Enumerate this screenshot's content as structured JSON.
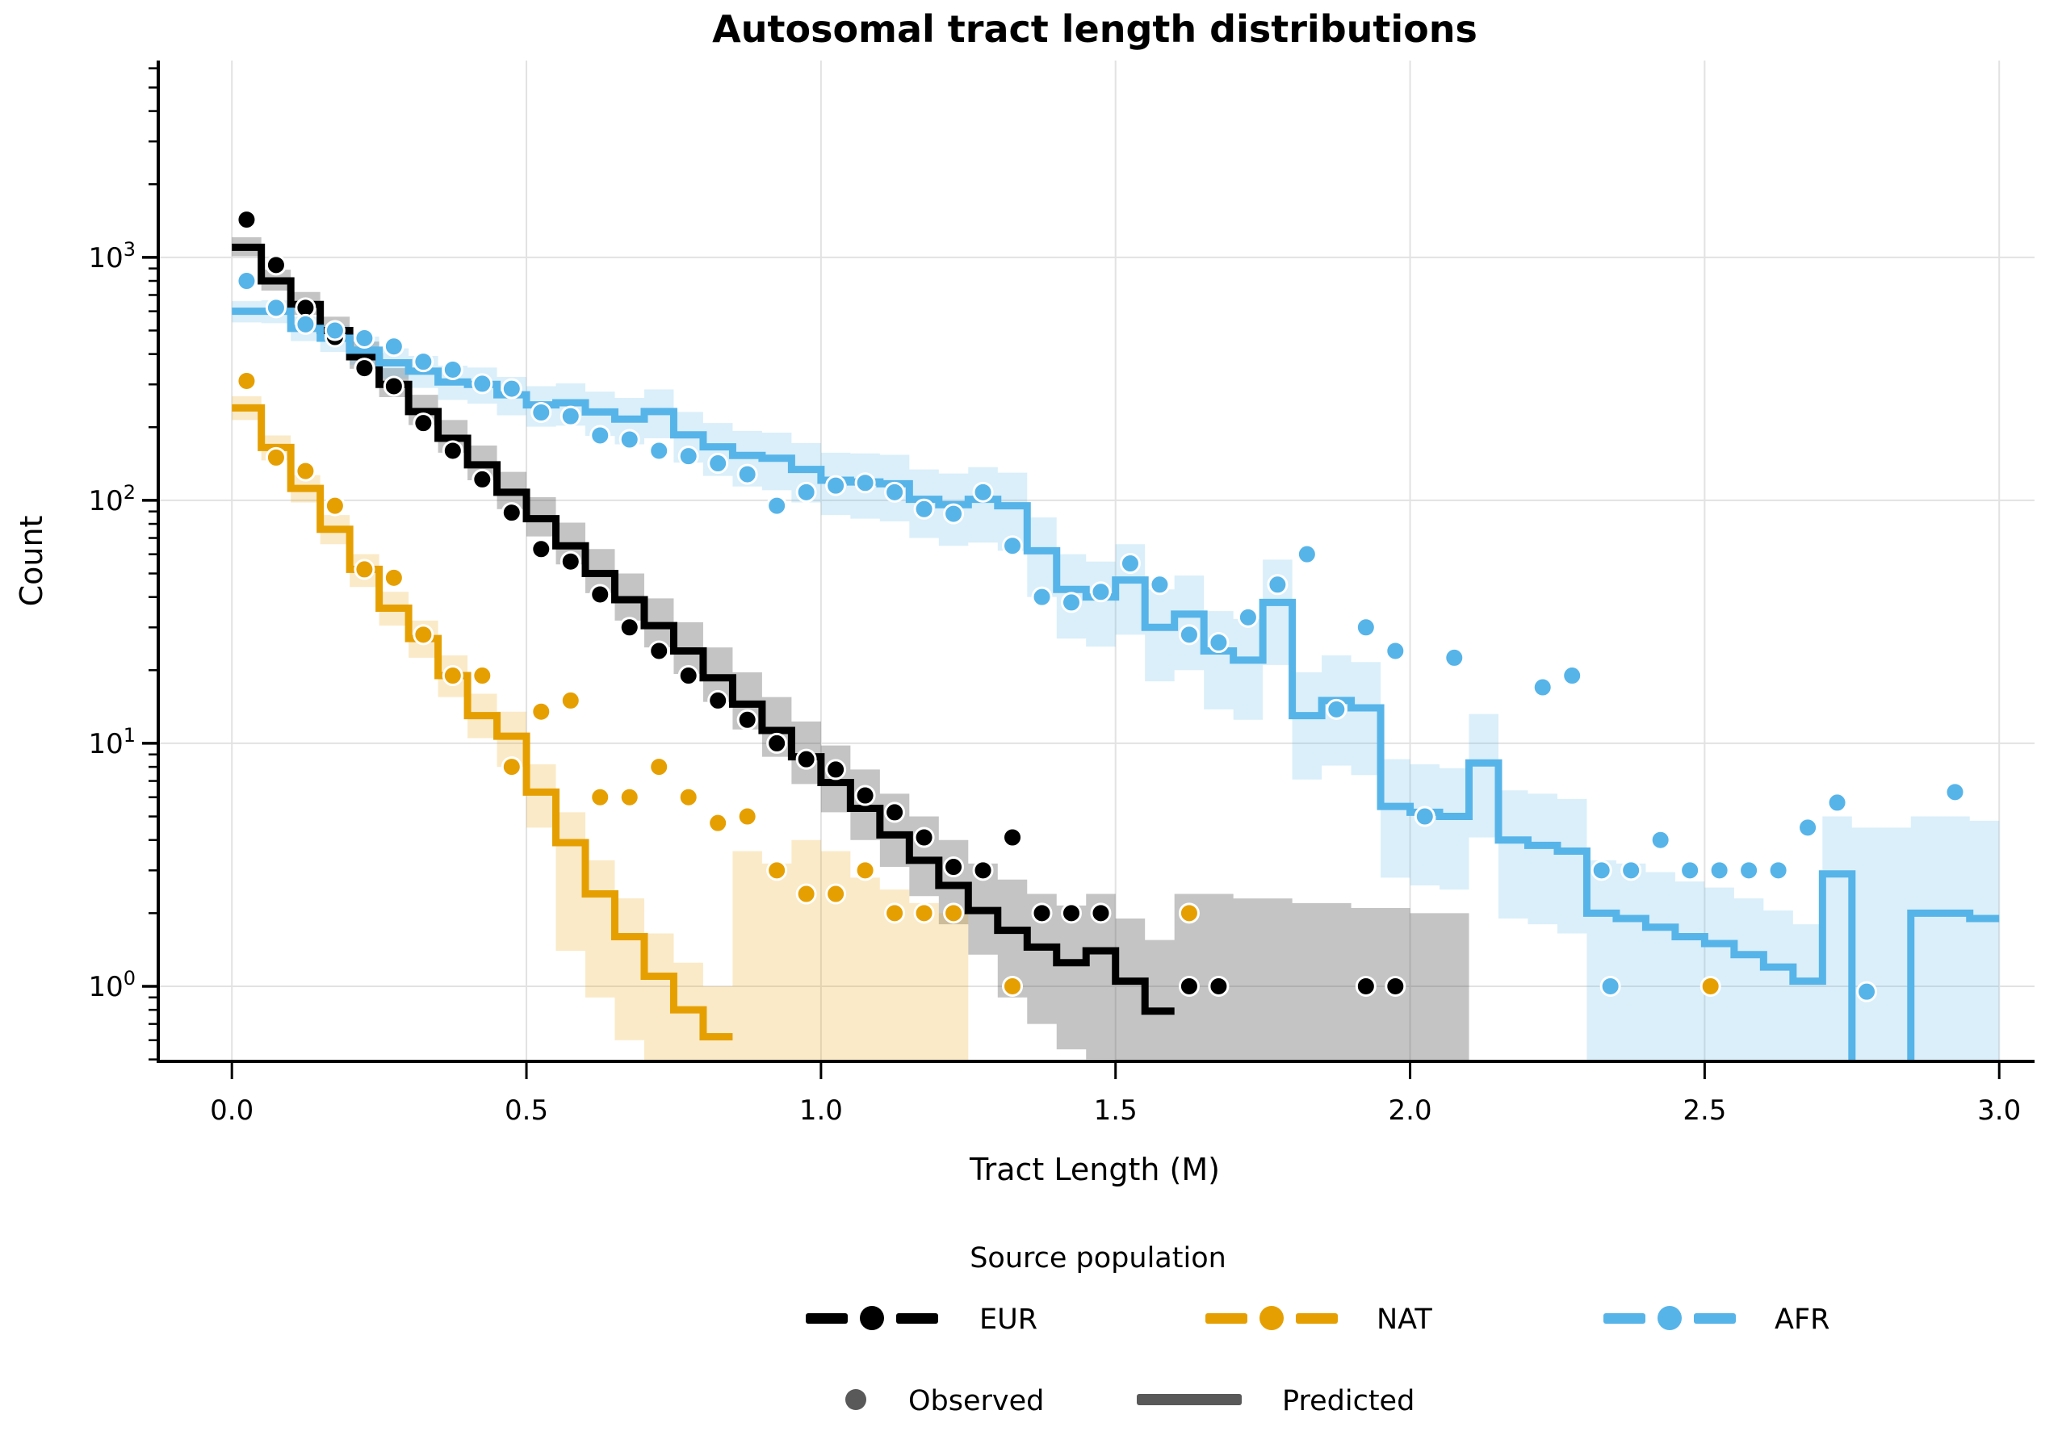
{
  "title": "Autosomal tract length distributions",
  "axes": {
    "x_label": "Tract Length (M)",
    "y_label": "Count",
    "x_tick_values": [
      0.0,
      0.5,
      1.0,
      1.5,
      2.0,
      2.5,
      3.0
    ],
    "x_tick_labels": [
      "0.0",
      "0.5",
      "1.0",
      "1.5",
      "2.0",
      "2.5",
      "3.0"
    ],
    "y_tick_exponents": [
      0,
      1,
      2,
      3
    ],
    "y_tick_base": "10",
    "xlim": [
      -0.125,
      3.06
    ],
    "ylim_log10": [
      -0.309,
      3.81
    ],
    "grid": true,
    "grid_color": "#e2e2e2",
    "spine_color": "#000000"
  },
  "legend": {
    "title": "Source population",
    "populations": [
      {
        "label": "EUR",
        "color": "#000000"
      },
      {
        "label": "NAT",
        "color": "#E69F00"
      },
      {
        "label": "AFR",
        "color": "#56B4E9"
      }
    ],
    "styles": [
      {
        "label": "Observed",
        "kind": "dot"
      },
      {
        "label": "Predicted",
        "kind": "line"
      }
    ],
    "neutral_color": "#595959"
  },
  "chart_data": {
    "type": "step-histogram-with-scatter",
    "title": "Autosomal tract length distributions",
    "xlabel": "Tract Length (M)",
    "ylabel": "Count",
    "y_scale": "log",
    "x_bin_width": 0.05,
    "x_start": 0.0,
    "series": [
      {
        "name": "EUR",
        "color": "#000000",
        "band_color": "rgba(70,70,70,0.32)",
        "predicted": [
          1100,
          800,
          640,
          500,
          390,
          300,
          232,
          180,
          140,
          108,
          84,
          65,
          50,
          39,
          30.5,
          24,
          18.6,
          14.5,
          11.3,
          8.8,
          6.9,
          5.4,
          4.2,
          3.3,
          2.6,
          2.05,
          1.7,
          1.45,
          1.25,
          1.4,
          1.05,
          0.79,
          null,
          null,
          null,
          null,
          null,
          null,
          null,
          null,
          null,
          null
        ],
        "ci_hi": [
          1210,
          890,
          720,
          570,
          450,
          350,
          272,
          214,
          168,
          131,
          103,
          81,
          63,
          50,
          39.5,
          31.5,
          24.8,
          19.6,
          15.5,
          12.3,
          9.8,
          7.8,
          6.2,
          5.0,
          4.0,
          3.2,
          2.75,
          2.4,
          2.15,
          2.4,
          1.9,
          1.55,
          2.4,
          2.4,
          2.3,
          2.3,
          2.2,
          2.2,
          2.1,
          2.1,
          2.0,
          2.0
        ],
        "ci_lo": [
          1010,
          730,
          580,
          450,
          348,
          266,
          204,
          157,
          121,
          92,
          71,
          54.5,
          41.5,
          32,
          24.8,
          19.3,
          14.8,
          11.4,
          8.8,
          6.8,
          5.2,
          4.0,
          3.1,
          2.35,
          1.8,
          1.35,
          0.9,
          0.7,
          0.55,
          0.5,
          0.4,
          0.35,
          0.3,
          0.3,
          0.3,
          0.3,
          0.3,
          0.3,
          0.3,
          0.3,
          0.3,
          0.3
        ],
        "observed": [
          [
            0.025,
            1430
          ],
          [
            0.075,
            930
          ],
          [
            0.125,
            620
          ],
          [
            0.175,
            470
          ],
          [
            0.225,
            350
          ],
          [
            0.275,
            295
          ],
          [
            0.325,
            208
          ],
          [
            0.375,
            160
          ],
          [
            0.425,
            122
          ],
          [
            0.475,
            89
          ],
          [
            0.525,
            63
          ],
          [
            0.575,
            56
          ],
          [
            0.625,
            41
          ],
          [
            0.675,
            30
          ],
          [
            0.725,
            24
          ],
          [
            0.775,
            19
          ],
          [
            0.825,
            15
          ],
          [
            0.875,
            12.5
          ],
          [
            0.925,
            10
          ],
          [
            0.975,
            8.6
          ],
          [
            1.025,
            7.8
          ],
          [
            1.075,
            6.1
          ],
          [
            1.125,
            5.2
          ],
          [
            1.175,
            4.1
          ],
          [
            1.225,
            3.1
          ],
          [
            1.275,
            3.0
          ],
          [
            1.325,
            4.1
          ],
          [
            1.375,
            2
          ],
          [
            1.425,
            2
          ],
          [
            1.475,
            2
          ],
          [
            1.625,
            1
          ],
          [
            1.675,
            1
          ],
          [
            1.925,
            1
          ],
          [
            1.975,
            1
          ]
        ]
      },
      {
        "name": "NAT",
        "color": "#E69F00",
        "band_color": "rgba(230,159,0,0.22)",
        "predicted": [
          240,
          165,
          112,
          76,
          52,
          36,
          27,
          19,
          13,
          10.7,
          6.3,
          3.9,
          2.4,
          1.6,
          1.1,
          0.8,
          0.62,
          null,
          null,
          null,
          null,
          null,
          null,
          null,
          null
        ],
        "ci_hi": [
          268,
          185,
          127,
          87,
          60,
          42,
          32,
          23,
          16,
          13.5,
          8.2,
          5.2,
          3.3,
          2.3,
          1.65,
          1.25,
          1.0,
          3.6,
          3.2,
          4.0,
          3.6,
          2.8,
          2.5,
          2.2,
          2.0
        ],
        "ci_lo": [
          214,
          146,
          98,
          66,
          44,
          30.5,
          22.5,
          15.5,
          10.5,
          8.0,
          4.5,
          1.4,
          0.9,
          0.6,
          0.45,
          0.35,
          0.3,
          0.3,
          0.3,
          0.3,
          0.3,
          0.3,
          0.3,
          0.3,
          0.3
        ],
        "observed": [
          [
            0.025,
            310
          ],
          [
            0.075,
            150
          ],
          [
            0.125,
            132
          ],
          [
            0.175,
            95
          ],
          [
            0.225,
            52
          ],
          [
            0.275,
            48
          ],
          [
            0.325,
            28
          ],
          [
            0.375,
            19
          ],
          [
            0.425,
            19
          ],
          [
            0.475,
            8
          ],
          [
            0.525,
            13.5
          ],
          [
            0.575,
            15
          ],
          [
            0.625,
            6
          ],
          [
            0.675,
            6
          ],
          [
            0.725,
            8
          ],
          [
            0.775,
            6
          ],
          [
            0.825,
            4.7
          ],
          [
            0.875,
            5
          ],
          [
            0.925,
            3
          ],
          [
            0.975,
            2.4
          ],
          [
            1.025,
            2.4
          ],
          [
            1.075,
            3
          ],
          [
            1.125,
            2
          ],
          [
            1.175,
            2
          ],
          [
            1.225,
            2
          ],
          [
            1.325,
            1
          ],
          [
            1.625,
            2
          ],
          [
            2.51,
            1
          ]
        ]
      },
      {
        "name": "AFR",
        "color": "#56B4E9",
        "band_color": "rgba(86,180,233,0.22)",
        "predicted": [
          600,
          600,
          510,
          465,
          415,
          368,
          340,
          307,
          300,
          272,
          247,
          252,
          231,
          216,
          232,
          186,
          166,
          153,
          149,
          134,
          121,
          119,
          117,
          101,
          96,
          101,
          95,
          62,
          43,
          40,
          47,
          30,
          34,
          24,
          22,
          38,
          13,
          15,
          14,
          5.5,
          5.2,
          5.0,
          8.3,
          4.0,
          3.8,
          3.6,
          2.0,
          1.9,
          1.75,
          1.6,
          1.5,
          1.35,
          1.2,
          1.05,
          2.9,
          0.3,
          0.3,
          2.0,
          2.0,
          1.9
        ],
        "ci_hi": [
          660,
          665,
          570,
          525,
          472,
          422,
          393,
          358,
          352,
          322,
          295,
          303,
          280,
          264,
          286,
          231,
          208,
          193,
          190,
          172,
          157,
          156,
          154,
          134,
          129,
          137,
          130,
          85,
          60,
          56,
          66,
          43,
          49,
          35,
          32.5,
          57,
          19.6,
          23,
          21.6,
          8.6,
          8.2,
          7.9,
          13.2,
          6.4,
          6.2,
          5.9,
          3.3,
          3.2,
          2.95,
          2.7,
          2.55,
          2.3,
          2.05,
          1.8,
          5.0,
          4.5,
          4.5,
          5.0,
          5.0,
          4.8
        ],
        "ci_lo": [
          540,
          536,
          452,
          408,
          361,
          317,
          290,
          259,
          250,
          224,
          201,
          203,
          184,
          170,
          180,
          143,
          126,
          114,
          110,
          98,
          87,
          84,
          82,
          70,
          65,
          67,
          62,
          40,
          27,
          25,
          28,
          18,
          20,
          13.8,
          12.5,
          21,
          7.1,
          8.1,
          7.4,
          2.8,
          2.6,
          2.5,
          4.1,
          1.9,
          1.8,
          1.65,
          0.3,
          0.3,
          0.3,
          0.3,
          0.3,
          0.3,
          0.3,
          0.3,
          0.3,
          0.2,
          0.2,
          0.3,
          0.3,
          0.3
        ],
        "observed": [
          [
            0.025,
            800
          ],
          [
            0.075,
            620
          ],
          [
            0.125,
            530
          ],
          [
            0.175,
            500
          ],
          [
            0.225,
            465
          ],
          [
            0.275,
            430
          ],
          [
            0.325,
            372
          ],
          [
            0.375,
            345
          ],
          [
            0.425,
            302
          ],
          [
            0.475,
            288
          ],
          [
            0.525,
            230
          ],
          [
            0.575,
            222
          ],
          [
            0.625,
            185
          ],
          [
            0.675,
            178
          ],
          [
            0.725,
            160
          ],
          [
            0.775,
            152
          ],
          [
            0.825,
            142
          ],
          [
            0.875,
            128
          ],
          [
            0.925,
            95
          ],
          [
            0.975,
            108
          ],
          [
            1.025,
            115
          ],
          [
            1.075,
            118
          ],
          [
            1.125,
            108
          ],
          [
            1.175,
            92
          ],
          [
            1.225,
            88
          ],
          [
            1.275,
            108
          ],
          [
            1.325,
            65
          ],
          [
            1.375,
            40
          ],
          [
            1.425,
            38
          ],
          [
            1.475,
            42
          ],
          [
            1.525,
            55
          ],
          [
            1.575,
            45
          ],
          [
            1.625,
            28
          ],
          [
            1.675,
            26
          ],
          [
            1.725,
            33
          ],
          [
            1.775,
            45
          ],
          [
            1.825,
            60
          ],
          [
            1.875,
            13.8
          ],
          [
            1.925,
            30
          ],
          [
            1.975,
            24
          ],
          [
            2.025,
            5
          ],
          [
            2.075,
            22.5
          ],
          [
            2.225,
            17
          ],
          [
            2.275,
            19
          ],
          [
            2.325,
            3
          ],
          [
            2.34,
            1
          ],
          [
            2.375,
            3
          ],
          [
            2.425,
            4
          ],
          [
            2.475,
            3
          ],
          [
            2.525,
            3
          ],
          [
            2.575,
            3
          ],
          [
            2.625,
            3
          ],
          [
            2.675,
            4.5
          ],
          [
            2.725,
            5.7
          ],
          [
            2.775,
            0.95
          ],
          [
            2.925,
            6.3
          ]
        ]
      }
    ]
  },
  "layout_note": "log-scale count histogram of ancestry tract lengths; predicted step curves with confidence bands and observed scatter points"
}
